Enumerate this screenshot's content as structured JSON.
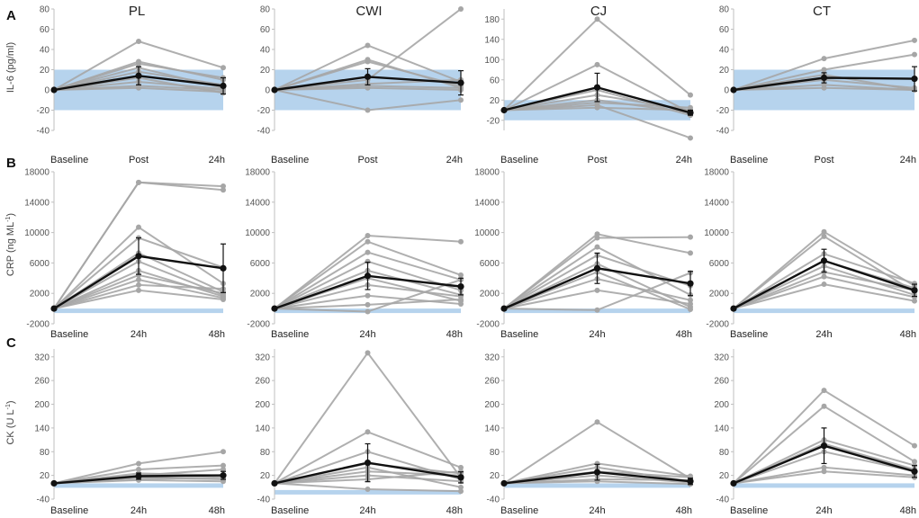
{
  "figure": {
    "colors": {
      "band": "#a9cbea",
      "individual": "#a6a6a6",
      "mean": "#111111",
      "axis": "#bfbfbf"
    },
    "conditions": [
      "PL",
      "CWI",
      "CJ",
      "CT"
    ],
    "panel_letters": [
      "A",
      "B",
      "C"
    ],
    "row_ylabels": [
      "IL-6 (pg/ml)",
      "CRP (ng ML",
      "CK (U L"
    ],
    "ylabel_superscript": "-1",
    "row_xlabels": [
      [
        "Baseline",
        "Post",
        "24h"
      ],
      [
        "Baseline",
        "24h",
        "48h"
      ],
      [
        "Baseline",
        "24h",
        "48h"
      ]
    ]
  },
  "chart_data": [
    {
      "type": "line",
      "row": 0,
      "title": "PL",
      "ylabel": "IL-6 (pg/ml)",
      "categories": [
        "Baseline",
        "Post",
        "24h"
      ],
      "ylim": [
        -40,
        80
      ],
      "yticks": [
        -40,
        -20,
        0,
        20,
        40,
        60,
        80
      ],
      "band": [
        -20,
        20
      ],
      "individuals": [
        [
          0,
          48,
          22
        ],
        [
          0,
          28,
          10
        ],
        [
          0,
          26,
          12
        ],
        [
          0,
          22,
          2
        ],
        [
          0,
          18,
          5
        ],
        [
          0,
          12,
          -3
        ],
        [
          0,
          8,
          1
        ],
        [
          0,
          4,
          0
        ],
        [
          0,
          2,
          -2
        ]
      ],
      "mean": [
        0,
        14,
        4
      ],
      "error": [
        0,
        9,
        8
      ]
    },
    {
      "type": "line",
      "row": 0,
      "title": "CWI",
      "ylabel": "IL-6 (pg/ml)",
      "categories": [
        "Baseline",
        "Post",
        "24h"
      ],
      "ylim": [
        -40,
        80
      ],
      "yticks": [
        -40,
        -20,
        0,
        20,
        40,
        60,
        80
      ],
      "band": [
        -20,
        20
      ],
      "individuals": [
        [
          0,
          44,
          8
        ],
        [
          0,
          30,
          2
        ],
        [
          0,
          28,
          4
        ],
        [
          0,
          10,
          80
        ],
        [
          0,
          6,
          10
        ],
        [
          0,
          4,
          2
        ],
        [
          0,
          2,
          0
        ],
        [
          0,
          -20,
          -10
        ]
      ],
      "mean": [
        0,
        13,
        7
      ],
      "error": [
        0,
        8,
        12
      ]
    },
    {
      "type": "line",
      "row": 0,
      "title": "CJ",
      "ylabel": "IL-6 (pg/ml)",
      "categories": [
        "Baseline",
        "Post",
        "24h"
      ],
      "ylim": [
        -40,
        200
      ],
      "yticks": [
        -20,
        20,
        60,
        100,
        140,
        180
      ],
      "band": [
        -20,
        20
      ],
      "individuals": [
        [
          0,
          180,
          30
        ],
        [
          0,
          90,
          -5
        ],
        [
          0,
          40,
          -10
        ],
        [
          0,
          30,
          0
        ],
        [
          0,
          20,
          -5
        ],
        [
          0,
          15,
          5
        ],
        [
          0,
          10,
          -55
        ],
        [
          0,
          5,
          0
        ]
      ],
      "mean": [
        0,
        45,
        -5
      ],
      "error": [
        0,
        28,
        5
      ]
    },
    {
      "type": "line",
      "row": 0,
      "title": "CT",
      "ylabel": "IL-6 (pg/ml)",
      "categories": [
        "Baseline",
        "Post",
        "24h"
      ],
      "ylim": [
        -40,
        80
      ],
      "yticks": [
        -40,
        -20,
        0,
        20,
        40,
        60,
        80
      ],
      "band": [
        -20,
        20
      ],
      "individuals": [
        [
          0,
          31,
          49
        ],
        [
          0,
          20,
          35
        ],
        [
          0,
          15,
          0
        ],
        [
          0,
          10,
          2
        ],
        [
          0,
          5,
          0
        ],
        [
          0,
          2,
          0
        ]
      ],
      "mean": [
        0,
        12,
        11
      ],
      "error": [
        0,
        5,
        12
      ]
    },
    {
      "type": "line",
      "row": 1,
      "title": "PL",
      "ylabel": "CRP (ng ML-1)",
      "categories": [
        "Baseline",
        "24h",
        "48h"
      ],
      "ylim": [
        -2000,
        18000
      ],
      "yticks": [
        -2000,
        2000,
        6000,
        10000,
        14000,
        18000
      ],
      "band": [
        -200,
        0
      ],
      "individuals": [
        [
          0,
          16600,
          16100
        ],
        [
          0,
          16600,
          15600
        ],
        [
          0,
          10700,
          3300
        ],
        [
          0,
          9300,
          5400
        ],
        [
          0,
          7300,
          2200
        ],
        [
          0,
          6200,
          1800
        ],
        [
          0,
          5000,
          1600
        ],
        [
          0,
          4400,
          2000
        ],
        [
          0,
          3800,
          1400
        ],
        [
          0,
          3100,
          2600
        ],
        [
          0,
          2400,
          1200
        ]
      ],
      "mean": [
        0,
        6900,
        5300
      ],
      "error": [
        0,
        2400,
        3200
      ]
    },
    {
      "type": "line",
      "row": 1,
      "title": "CWI",
      "ylabel": "CRP (ng ML-1)",
      "categories": [
        "Baseline",
        "24h",
        "48h"
      ],
      "ylim": [
        -2000,
        18000
      ],
      "yticks": [
        -2000,
        2000,
        6000,
        10000,
        14000,
        18000
      ],
      "band": [
        -500,
        0
      ],
      "individuals": [
        [
          0,
          9600,
          8800
        ],
        [
          0,
          8800,
          4400
        ],
        [
          0,
          7400,
          3800
        ],
        [
          0,
          6200,
          2400
        ],
        [
          0,
          5000,
          1800
        ],
        [
          0,
          4000,
          1000
        ],
        [
          0,
          3100,
          1600
        ],
        [
          0,
          1700,
          600
        ],
        [
          0,
          500,
          1200
        ],
        [
          0,
          -400,
          3800
        ]
      ],
      "mean": [
        0,
        4300,
        2900
      ],
      "error": [
        0,
        1800,
        1100
      ]
    },
    {
      "type": "line",
      "row": 1,
      "title": "CJ",
      "ylabel": "CRP (ng ML-1)",
      "categories": [
        "Baseline",
        "24h",
        "48h"
      ],
      "ylim": [
        -2000,
        18000
      ],
      "yticks": [
        -2000,
        2000,
        6000,
        10000,
        14000,
        18000
      ],
      "band": [
        -500,
        0
      ],
      "individuals": [
        [
          0,
          9800,
          7300
        ],
        [
          0,
          9300,
          9400
        ],
        [
          0,
          8100,
          1800
        ],
        [
          0,
          7000,
          3000
        ],
        [
          0,
          5900,
          200
        ],
        [
          0,
          4800,
          -100
        ],
        [
          0,
          3900,
          1100
        ],
        [
          0,
          2400,
          600
        ],
        [
          0,
          -200,
          4700
        ]
      ],
      "mean": [
        0,
        5300,
        3300
      ],
      "error": [
        0,
        2000,
        1600
      ]
    },
    {
      "type": "line",
      "row": 1,
      "title": "CT",
      "ylabel": "CRP (ng ML-1)",
      "categories": [
        "Baseline",
        "24h",
        "48h"
      ],
      "ylim": [
        -2000,
        18000
      ],
      "yticks": [
        -2000,
        2000,
        6000,
        10000,
        14000,
        18000
      ],
      "band": [
        -500,
        0
      ],
      "individuals": [
        [
          0,
          10100,
          3000
        ],
        [
          0,
          9500,
          2200
        ],
        [
          0,
          7200,
          3300
        ],
        [
          0,
          6300,
          2700
        ],
        [
          0,
          5600,
          1800
        ],
        [
          0,
          4800,
          2400
        ],
        [
          0,
          4200,
          1500
        ],
        [
          0,
          3200,
          1000
        ]
      ],
      "mean": [
        0,
        6300,
        2400
      ],
      "error": [
        0,
        1500,
        800
      ]
    },
    {
      "type": "line",
      "row": 2,
      "title": "PL",
      "ylabel": "CK (U L-1)",
      "categories": [
        "Baseline",
        "24h",
        "48h"
      ],
      "ylim": [
        -40,
        340
      ],
      "yticks": [
        -40,
        20,
        80,
        140,
        200,
        260,
        320
      ],
      "band": [
        -2,
        0
      ],
      "individuals": [
        [
          0,
          50,
          80
        ],
        [
          0,
          35,
          45
        ],
        [
          0,
          25,
          20
        ],
        [
          0,
          20,
          35
        ],
        [
          0,
          15,
          10
        ],
        [
          0,
          10,
          15
        ],
        [
          0,
          8,
          5
        ]
      ],
      "mean": [
        0,
        18,
        20
      ],
      "error": [
        0,
        8,
        10
      ]
    },
    {
      "type": "line",
      "row": 2,
      "title": "CWI",
      "ylabel": "CK (U L-1)",
      "categories": [
        "Baseline",
        "24h",
        "48h"
      ],
      "ylim": [
        -40,
        340
      ],
      "yticks": [
        -40,
        20,
        80,
        140,
        200,
        260,
        320
      ],
      "band": [
        -20,
        -17
      ],
      "individuals": [
        [
          0,
          330,
          15
        ],
        [
          0,
          130,
          40
        ],
        [
          0,
          80,
          10
        ],
        [
          0,
          50,
          25
        ],
        [
          0,
          40,
          -10
        ],
        [
          0,
          30,
          20
        ],
        [
          0,
          20,
          5
        ],
        [
          0,
          10,
          30
        ],
        [
          0,
          -15,
          -20
        ]
      ],
      "mean": [
        0,
        52,
        15
      ],
      "error": [
        0,
        48,
        14
      ]
    },
    {
      "type": "line",
      "row": 2,
      "title": "CJ",
      "ylabel": "CK (U L-1)",
      "categories": [
        "Baseline",
        "24h",
        "48h"
      ],
      "ylim": [
        -40,
        340
      ],
      "yticks": [
        -40,
        20,
        80,
        140,
        200,
        260,
        320
      ],
      "band": [
        -2,
        0
      ],
      "individuals": [
        [
          0,
          155,
          12
        ],
        [
          0,
          50,
          18
        ],
        [
          0,
          40,
          5
        ],
        [
          0,
          30,
          15
        ],
        [
          0,
          20,
          2
        ],
        [
          0,
          10,
          8
        ],
        [
          0,
          5,
          -2
        ]
      ],
      "mean": [
        0,
        28,
        5
      ],
      "error": [
        0,
        20,
        8
      ]
    },
    {
      "type": "line",
      "row": 2,
      "title": "CT",
      "ylabel": "CK (U L-1)",
      "categories": [
        "Baseline",
        "24h",
        "48h"
      ],
      "ylim": [
        -40,
        340
      ],
      "yticks": [
        -40,
        20,
        80,
        140,
        200,
        260,
        320
      ],
      "band": [
        -2,
        0
      ],
      "individuals": [
        [
          0,
          235,
          95
        ],
        [
          0,
          195,
          55
        ],
        [
          0,
          110,
          45
        ],
        [
          0,
          100,
          35
        ],
        [
          0,
          80,
          30
        ],
        [
          0,
          40,
          20
        ],
        [
          0,
          30,
          15
        ]
      ],
      "mean": [
        0,
        95,
        30
      ],
      "error": [
        0,
        45,
        15
      ]
    }
  ]
}
